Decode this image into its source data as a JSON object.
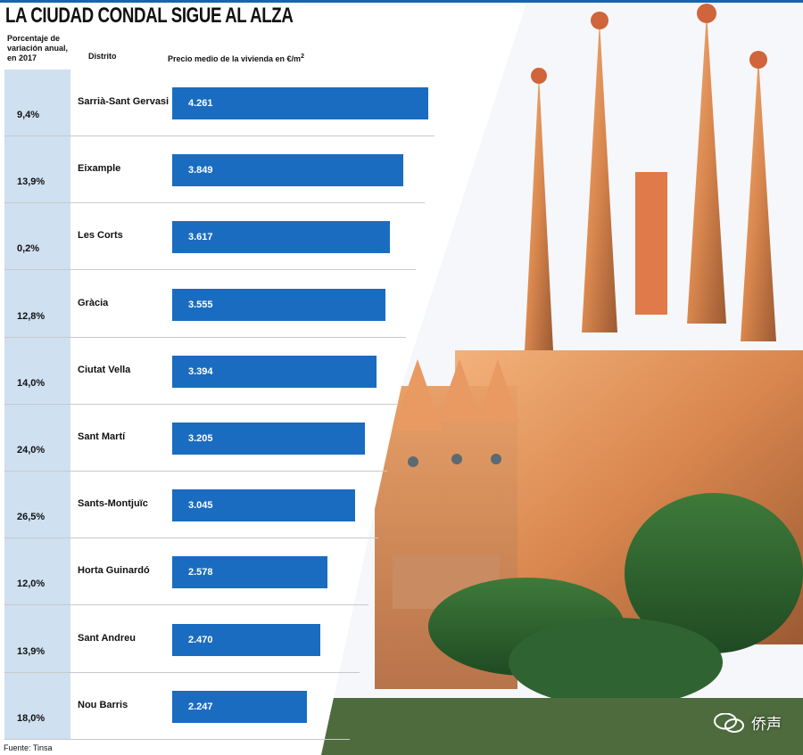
{
  "title": "LA CIUDAD CONDAL SIGUE AL ALZA",
  "headers": {
    "percent": "Porcentaje de variación anual, en 2017",
    "district": "Distrito",
    "price": "Precio medio de la vivienda en €/m²"
  },
  "source": {
    "label": "Fuente:",
    "name": "Tinsa"
  },
  "watermark": {
    "text": "侨声",
    "icon": "wechat-icon"
  },
  "photo": {
    "subject": "sagrada-familia-photo"
  },
  "colors": {
    "bar": "#1a6cc0",
    "percent_column": "#cfe0f1",
    "title_rule": "#1565b3"
  },
  "chart_data": {
    "type": "bar",
    "orientation": "horizontal",
    "title": "LA CIUDAD CONDAL SIGUE AL ALZA",
    "xlabel": "Precio medio de la vivienda en €/m²",
    "ylabel": "Distrito",
    "categories": [
      "Sarrià-Sant Gervasi",
      "Eixample",
      "Les Corts",
      "Gràcia",
      "Ciutat Vella",
      "Sant Martí",
      "Sants-Montjuïc",
      "Horta Guinardó",
      "Sant Andreu",
      "Nou Barris"
    ],
    "values": [
      4261,
      3849,
      3617,
      3555,
      3394,
      3205,
      3045,
      2578,
      2470,
      2247
    ],
    "value_labels": [
      "4.261",
      "3.849",
      "3.617",
      "3.555",
      "3.394",
      "3.205",
      "3.045",
      "2.578",
      "2.470",
      "2.247"
    ],
    "annual_change": [
      "9,4%",
      "13,9%",
      "0,2%",
      "12,8%",
      "14,0%",
      "24,0%",
      "26,5%",
      "12,0%",
      "13,9%",
      "18,0%"
    ],
    "xlim": [
      0,
      4261
    ]
  }
}
